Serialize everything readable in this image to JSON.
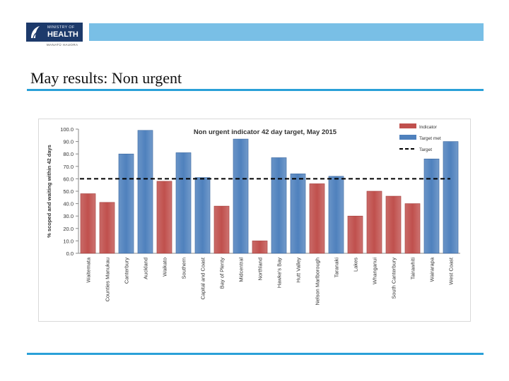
{
  "slide": {
    "title": "May results: Non urgent"
  },
  "logo": {
    "line1": "MINISTRY OF",
    "line2": "HEALTH",
    "sub": "MANATŪ HAUORA"
  },
  "colors": {
    "indicator": "#c0504d",
    "target_met": "#4f81bd",
    "target_line": "#000000",
    "header_bar": "#79bfe6",
    "rule": "#2aa0d8"
  },
  "chart_data": {
    "type": "bar",
    "title": "Non urgent indicator 42 day target, May 2015",
    "ylabel": "% scoped and waiting within 42 days",
    "xlabel": "",
    "ylim": [
      0,
      100
    ],
    "yticks": [
      "100.0",
      "90.0",
      "80.0",
      "70.0",
      "60.0",
      "50.0",
      "40.0",
      "30.0",
      "20.0",
      "10.0",
      "0.0"
    ],
    "grid": false,
    "legend_position": "top-right",
    "legend": [
      "Indicator",
      "Target met",
      "Target"
    ],
    "target": 60,
    "categories": [
      "Waitemata",
      "Counties Manukau",
      "Canterbury",
      "Auckland",
      "Waikato",
      "Southern",
      "Capital and Coast",
      "Bay of Plenty",
      "Midcentral",
      "Northland",
      "Hawke's Bay",
      "Hutt Valley",
      "Nelson Marlborough",
      "Taranaki",
      "Lakes",
      "Whanganui",
      "South Canterbury",
      "Tairawhiti",
      "Wairarapa",
      "West Coast"
    ],
    "values": [
      48,
      41,
      80,
      99,
      58,
      81,
      61,
      38,
      92,
      10,
      77,
      64,
      56,
      62,
      30,
      50,
      46,
      40,
      76,
      90
    ],
    "status": [
      "indicator",
      "indicator",
      "target_met",
      "target_met",
      "indicator",
      "target_met",
      "target_met",
      "indicator",
      "target_met",
      "indicator",
      "target_met",
      "target_met",
      "indicator",
      "target_met",
      "indicator",
      "indicator",
      "indicator",
      "indicator",
      "target_met",
      "target_met"
    ]
  }
}
